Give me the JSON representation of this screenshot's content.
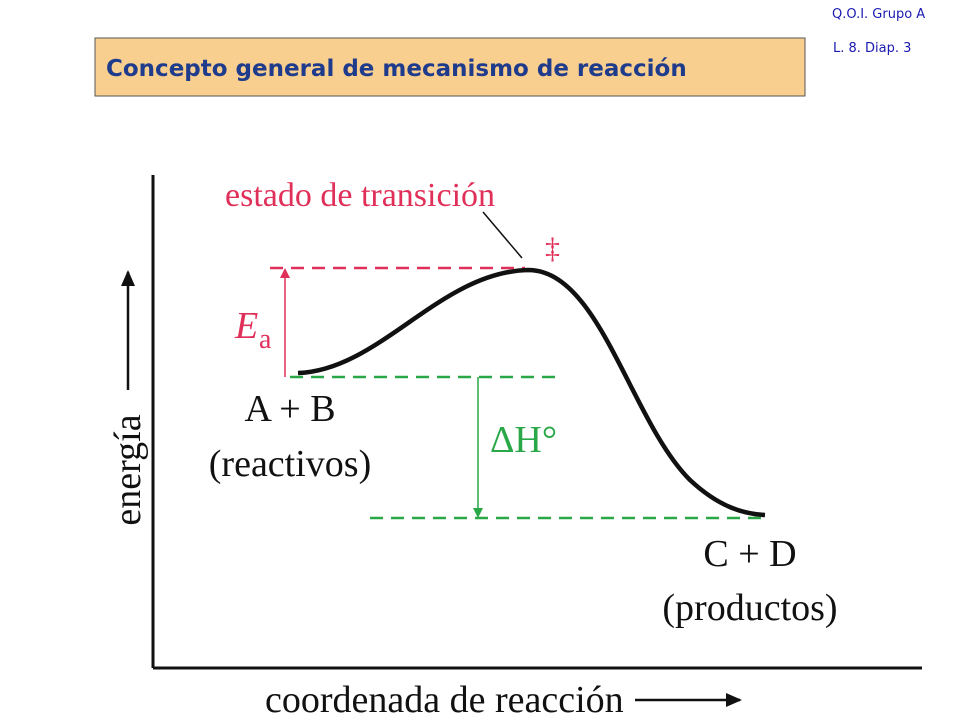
{
  "header": {
    "course": "Q.O.I. Grupo A",
    "slide": "L. 8. Diap. 3",
    "title": "Concepto general de mecanismo de reacción"
  },
  "diagram": {
    "transition_state": "estado de transición",
    "transition_symbol": "‡",
    "activation_energy": {
      "symbol": "E",
      "subscript": "a"
    },
    "reactants": {
      "formula": "A + B",
      "label": "(reactivos)"
    },
    "enthalpy": "ΔH°",
    "products": {
      "formula": "C + D",
      "label": "(productos)"
    },
    "y_axis": "energía",
    "x_axis": "coordenada de reacción"
  }
}
